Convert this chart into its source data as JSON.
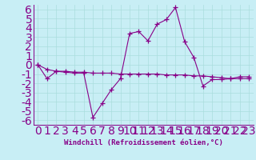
{
  "line1_x": [
    0,
    1,
    2,
    3,
    4,
    5,
    6,
    7,
    8,
    9,
    10,
    11,
    12,
    13,
    14,
    15,
    16,
    17,
    18,
    19,
    20,
    21,
    22,
    23
  ],
  "line1_y": [
    0,
    -1.5,
    -0.7,
    -0.8,
    -0.9,
    -0.9,
    -5.7,
    -4.2,
    -2.7,
    -1.5,
    3.4,
    3.6,
    2.6,
    4.4,
    4.9,
    6.2,
    2.5,
    0.8,
    -2.3,
    -1.6,
    -1.6,
    -1.5,
    -1.3,
    -1.3
  ],
  "line2_x": [
    0,
    1,
    2,
    3,
    4,
    5,
    6,
    7,
    8,
    9,
    10,
    11,
    12,
    13,
    14,
    15,
    16,
    17,
    18,
    19,
    20,
    21,
    22,
    23
  ],
  "line2_y": [
    0,
    -0.5,
    -0.7,
    -0.7,
    -0.8,
    -0.8,
    -0.9,
    -0.9,
    -0.9,
    -1.0,
    -1.0,
    -1.0,
    -1.0,
    -1.0,
    -1.1,
    -1.1,
    -1.1,
    -1.2,
    -1.2,
    -1.3,
    -1.4,
    -1.5,
    -1.5,
    -1.5
  ],
  "line_color": "#880088",
  "background_color": "#c8eef5",
  "grid_color": "#aadddd",
  "xlabel": "Windchill (Refroidissement éolien,°C)",
  "ylim": [
    -6.5,
    6.5
  ],
  "xlim": [
    -0.5,
    23.5
  ],
  "yticks": [
    -6,
    -5,
    -4,
    -3,
    -2,
    -1,
    0,
    1,
    2,
    3,
    4,
    5,
    6
  ],
  "xticks": [
    0,
    1,
    2,
    3,
    4,
    5,
    6,
    7,
    8,
    9,
    10,
    11,
    12,
    13,
    14,
    15,
    16,
    17,
    18,
    19,
    20,
    21,
    22,
    23
  ],
  "xtick_labels": [
    "0",
    "1",
    "2",
    "3",
    "4",
    "5",
    "6",
    "7",
    "8",
    "9",
    "10",
    "11",
    "12",
    "13",
    "14",
    "15",
    "16",
    "17",
    "18",
    "19",
    "20",
    "21",
    "22",
    "23"
  ],
  "marker": "+",
  "markersize": 4,
  "linewidth": 0.8,
  "tick_fontsize": 5.5,
  "xlabel_fontsize": 6.5
}
